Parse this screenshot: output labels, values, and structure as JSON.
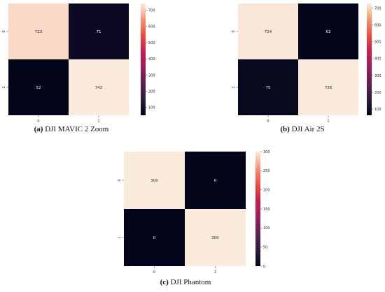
{
  "chart_data": [
    {
      "type": "heatmap",
      "caption_label": "(a)",
      "caption_text": "DJI MAVIC 2 Zoom",
      "row_labels": [
        "0",
        "1"
      ],
      "col_labels": [
        "0",
        "1"
      ],
      "values": [
        [
          723,
          71
        ],
        [
          52,
          742
        ]
      ],
      "colorbar_range": [
        52,
        742
      ],
      "colorbar_ticks": [
        100,
        200,
        300,
        400,
        500,
        600,
        700
      ]
    },
    {
      "type": "heatmap",
      "caption_label": "(b)",
      "caption_text": "DJI Air 2S",
      "row_labels": [
        "0",
        "1"
      ],
      "col_labels": [
        "0",
        "1"
      ],
      "values": [
        [
          724,
          63
        ],
        [
          75,
          728
        ]
      ],
      "colorbar_range": [
        63,
        728
      ],
      "colorbar_ticks": [
        100,
        200,
        300,
        400,
        500,
        600,
        700
      ]
    },
    {
      "type": "heatmap",
      "caption_label": "(c)",
      "caption_text": "DJI Phantom",
      "row_labels": [
        "0",
        "1"
      ],
      "col_labels": [
        "0",
        "1"
      ],
      "values": [
        [
          300,
          0
        ],
        [
          0,
          300
        ]
      ],
      "colorbar_range": [
        0,
        300
      ],
      "colorbar_ticks": [
        0,
        50,
        100,
        150,
        200,
        250,
        300
      ]
    }
  ]
}
